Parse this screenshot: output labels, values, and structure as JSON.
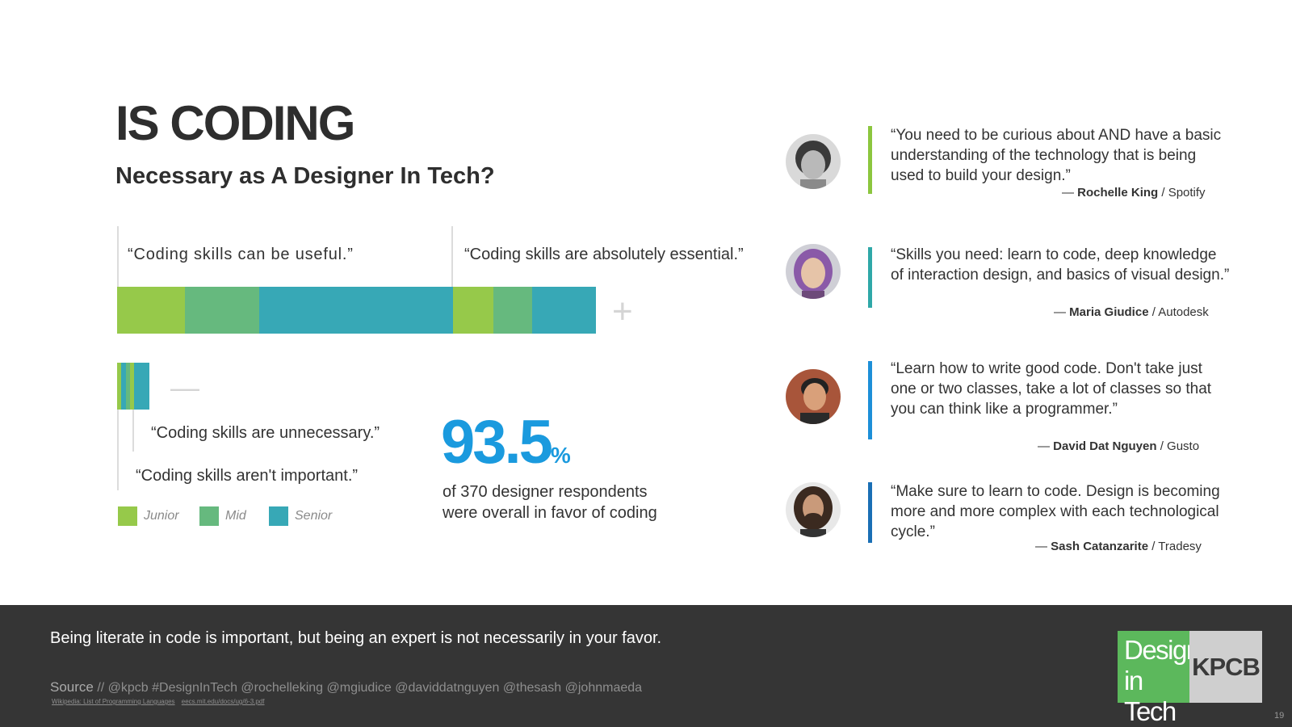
{
  "heading": {
    "title": "IS CODING",
    "subtitle": "Necessary as A Designer In Tech?"
  },
  "survey": {
    "useful_label": "“Coding skills can be useful.”",
    "essential_label": "“Coding skills are absolutely essential.”",
    "unnecessary_label": "“Coding skills are unnecessary.”",
    "not_important_label": "“Coding skills aren't important.”",
    "plus_sign": "+",
    "minus_sign": "—",
    "segments_positive": [
      {
        "group": "Junior",
        "useful_share": 0.14
      },
      {
        "group": "Mid",
        "useful_share": 0.155
      },
      {
        "group": "Senior",
        "useful_share": 0.405
      }
    ],
    "legend": [
      {
        "label": "Junior",
        "color": "#96c94a"
      },
      {
        "label": "Mid",
        "color": "#66b97e"
      },
      {
        "label": "Senior",
        "color": "#37a8b6"
      }
    ]
  },
  "stat": {
    "value": "93.5",
    "unit": "%",
    "description": "of 370 designer respondents were overall in favor of coding"
  },
  "quotes": [
    {
      "text": "“You need to be curious about AND have a basic understanding of the technology that is being used to build your design.”",
      "prefix": "— ",
      "name": "Rochelle King",
      "company": " / Spotify",
      "accent": "#8cc63f"
    },
    {
      "text": "“Skills you need: learn to code, deep knowledge of interaction design, and basics of visual design.”",
      "prefix": "— ",
      "name": "Maria Giudice",
      "company": " / Autodesk",
      "accent": "#2fa8a8"
    },
    {
      "text": "“Learn how to write good code. Don't take just one or two classes, take a lot of classes so that you can think like a programmer.”",
      "prefix": "— ",
      "name": "David Dat Nguyen",
      "company": " / Gusto",
      "accent": "#1d8fd8"
    },
    {
      "text": "“Make sure to learn to code. Design is becoming more and more complex with each technological cycle.”",
      "prefix": "— ",
      "name": "Sash Catanzarite",
      "company": " / Tradesy",
      "accent": "#1a6fb5"
    }
  ],
  "footer": {
    "message": "Being literate in code is important, but being an expert is not necessarily in your favor.",
    "source_label": "Source",
    "source_text": " // @kpcb #DesignInTech @rochelleking @mgiudice @daviddatnguyen @thesash @johnmaeda",
    "links": [
      "Wikipedia: List of Programming Languages",
      "eecs.mit.edu/docs/ug/6-3.pdf"
    ],
    "logo_line1": "Design",
    "logo_line2": "in Tech",
    "logo_kpcb": "KPCB",
    "page_number": "19"
  }
}
